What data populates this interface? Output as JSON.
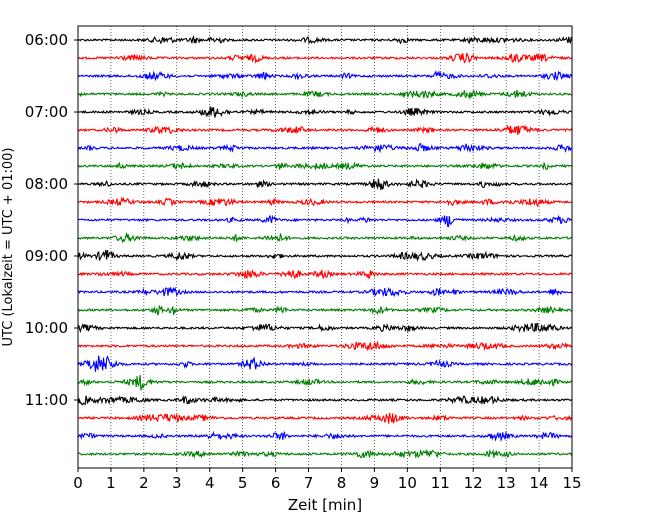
{
  "chart_data": {
    "type": "line",
    "subtype": "seismogram-helicorder",
    "xlabel": "Zeit  [min]",
    "ylabel": "UTC (Lokalzeit = UTC + 01:00)",
    "xlim": [
      0,
      15
    ],
    "x_ticks": [
      "0",
      "1",
      "2",
      "3",
      "4",
      "5",
      "6",
      "7",
      "8",
      "9",
      "10",
      "11",
      "12",
      "13",
      "14",
      "15"
    ],
    "y_ticks": [
      "06:00",
      "07:00",
      "08:00",
      "09:00",
      "10:00",
      "11:00"
    ],
    "grid": "vertical dotted lines at each minute",
    "trace_minutes": 15,
    "trace_colors": [
      "#000000",
      "#ff0000",
      "#0000ff",
      "#008000"
    ],
    "traces": [
      {
        "start": "06:00",
        "color": "#000000"
      },
      {
        "start": "06:15",
        "color": "#ff0000"
      },
      {
        "start": "06:30",
        "color": "#0000ff"
      },
      {
        "start": "06:45",
        "color": "#008000"
      },
      {
        "start": "07:00",
        "color": "#000000"
      },
      {
        "start": "07:15",
        "color": "#ff0000"
      },
      {
        "start": "07:30",
        "color": "#0000ff"
      },
      {
        "start": "07:45",
        "color": "#008000"
      },
      {
        "start": "08:00",
        "color": "#000000"
      },
      {
        "start": "08:15",
        "color": "#ff0000"
      },
      {
        "start": "08:30",
        "color": "#0000ff"
      },
      {
        "start": "08:45",
        "color": "#008000"
      },
      {
        "start": "09:00",
        "color": "#000000"
      },
      {
        "start": "09:15",
        "color": "#ff0000"
      },
      {
        "start": "09:30",
        "color": "#0000ff"
      },
      {
        "start": "09:45",
        "color": "#008000"
      },
      {
        "start": "10:00",
        "color": "#000000"
      },
      {
        "start": "10:15",
        "color": "#ff0000"
      },
      {
        "start": "10:30",
        "color": "#0000ff"
      },
      {
        "start": "10:45",
        "color": "#008000"
      },
      {
        "start": "11:00",
        "color": "#000000"
      },
      {
        "start": "11:15",
        "color": "#ff0000"
      },
      {
        "start": "11:30",
        "color": "#0000ff"
      },
      {
        "start": "11:45",
        "color": "#008000"
      }
    ]
  }
}
